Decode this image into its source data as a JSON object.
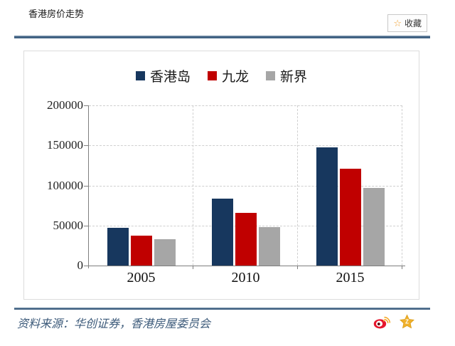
{
  "header": {
    "title": "香港房价走势",
    "favorite_label": "收藏",
    "favorite_star_icon": "☆"
  },
  "chart_data": {
    "type": "bar",
    "title": "",
    "xlabel": "",
    "ylabel": "",
    "categories": [
      "2005",
      "2010",
      "2015"
    ],
    "series": [
      {
        "name": "香港岛",
        "color": "#17375e",
        "values": [
          47000,
          84000,
          148000
        ]
      },
      {
        "name": "九龙",
        "color": "#c00000",
        "values": [
          37000,
          66000,
          121000
        ]
      },
      {
        "name": "新界",
        "color": "#a6a6a6",
        "values": [
          33000,
          48000,
          97000
        ]
      }
    ],
    "ylim": [
      0,
      200000
    ],
    "yticks": [
      0,
      50000,
      100000,
      150000,
      200000
    ],
    "grid": "dashed",
    "legend_position": "top"
  },
  "footer": {
    "source": "资料来源：华创证券，香港房屋委员会",
    "share_icons": [
      "weibo-icon",
      "qzone-star-icon"
    ]
  }
}
